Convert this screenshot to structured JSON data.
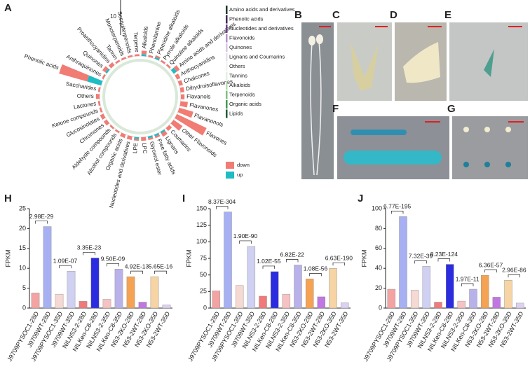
{
  "photo_panels": [
    "B",
    "C",
    "D",
    "E",
    "F",
    "G"
  ],
  "chart_data": [
    {
      "type": "radial_bar",
      "panel_label": "A",
      "scale_bar": 10,
      "categories": [
        "Alkaloids",
        "Phenolamine",
        "Piperidine alkaloids",
        "Pyrrole alkaloids",
        "Quinoline alkaloids",
        "Amino acids and derivatives",
        "Anthocyanidins",
        "Chalcones",
        "Dihydroisoflavones",
        "Flavanols",
        "Flavanones",
        "Flavanonols",
        "Flavones",
        "Other Flavonoids",
        "Coumarins",
        "Lignans",
        "Free fatty acids",
        "Glycerol ester",
        "LPC",
        "LPE",
        "Nucleotides and derivatives",
        "Organic acids",
        "Alcohol compounds",
        "Aldehyde compounds",
        "Chromones",
        "Glucosinolates",
        "Ketone compounds",
        "Lactones",
        "Others",
        "Saccharides",
        "Phenolic acids",
        "Anthraquinones",
        "Quinones",
        "Proanthocyanidins",
        "Tannin",
        "Monoterpenoids",
        "Sesquiterpenoids",
        "Terpene"
      ],
      "series": [
        {
          "name": "up",
          "color": "#1fbcc4",
          "values": [
            0.5,
            0,
            0.5,
            0,
            0,
            1,
            0,
            0,
            0,
            0,
            0,
            0,
            0,
            0,
            0,
            0.5,
            0.5,
            0.5,
            0,
            0.5,
            0,
            0,
            0,
            0,
            0,
            0,
            0,
            0,
            0,
            0,
            4,
            0,
            0.5,
            0,
            0,
            0,
            0,
            0
          ]
        },
        {
          "name": "down",
          "color": "#f07c74",
          "values": [
            1,
            0.5,
            0.5,
            0.5,
            0.5,
            1,
            1,
            1,
            1,
            1,
            2,
            4,
            9,
            3,
            1,
            1,
            0.5,
            0.5,
            1,
            0.5,
            1,
            1,
            0.5,
            0.5,
            1,
            1,
            0.5,
            0.5,
            1,
            0.5,
            8,
            0.5,
            1,
            1,
            0.5,
            0.5,
            0.5,
            0.5
          ]
        }
      ],
      "class_legend": [
        {
          "name": "Amino acids and derivatives",
          "color": "#1b3b2a"
        },
        {
          "name": "Phenolic acids",
          "color": "#3d2a4f"
        },
        {
          "name": "Nucleotides and derivatives",
          "color": "#6b3f8c"
        },
        {
          "name": "Flavonoids",
          "color": "#b48fd0"
        },
        {
          "name": "Quinones",
          "color": "#d7c6e8"
        },
        {
          "name": "Lignans and Coumarins",
          "color": "#e6e0ef"
        },
        {
          "name": "Others",
          "color": "#f2f2f2"
        },
        {
          "name": "Tannins",
          "color": "#e3efe3"
        },
        {
          "name": "Alkaloids",
          "color": "#b9dcb9"
        },
        {
          "name": "Terpenoids",
          "color": "#7fc07f"
        },
        {
          "name": "Organic acids",
          "color": "#3f9a4f"
        },
        {
          "name": "Lipids",
          "color": "#1f5a30"
        }
      ]
    },
    {
      "type": "bar",
      "panel_label": "H",
      "ylabel": "FPKM",
      "categories": [
        "J9709PYSOC1-28D",
        "J9709WT-28D",
        "J9709PYSOC1-35D",
        "J9709WT-35D",
        "NILNS3-2-28D",
        "NILKen-C8-28D",
        "NILNS3-2-35D",
        "NILKen-C8-35D",
        "N53-2KO-28D",
        "N53-2WT-28D",
        "N53-2KO-35D",
        "N53-2WT-35D"
      ],
      "values": [
        3.8,
        20.5,
        3.5,
        9.3,
        1.7,
        12.6,
        2.2,
        9.8,
        7.9,
        1.5,
        7.9,
        0.8
      ],
      "colors": [
        "#f4a3a3",
        "#a6b0f2",
        "#f6d9d2",
        "#cfd0f2",
        "#f07a7a",
        "#2b2be0",
        "#f6c2c2",
        "#b9b2ea",
        "#f5a352",
        "#c276e2",
        "#f6d4a4",
        "#ddd0f2"
      ],
      "ylim": [
        0,
        25
      ],
      "yticks": [
        0,
        5,
        10,
        15,
        20,
        25
      ],
      "annotations": [
        "2.98E-29",
        "1.09E-07",
        "3.35E-23",
        "9.50E-09",
        "4.92E-13",
        "5.65E-16"
      ]
    },
    {
      "type": "bar",
      "panel_label": "I",
      "ylabel": "FPKM",
      "categories": [
        "J9709PYSOC1-28D",
        "J9709WT-28D",
        "J9709PYSOC1-35D",
        "J9709WT-35D",
        "NILNS3-2-28D",
        "NILKen-C8-28D",
        "NILNS3-2-35D",
        "NILKen-C8-35D",
        "N53-2KO-28D",
        "N53-2WT-28D",
        "N53-2KO-35D",
        "N53-2WT-35D"
      ],
      "values": [
        26,
        145,
        34,
        93,
        18,
        55,
        21,
        65,
        44,
        17,
        60,
        8
      ],
      "colors": [
        "#f4a3a3",
        "#a6b0f2",
        "#f6d9d2",
        "#cfd0f2",
        "#f07a7a",
        "#2b2be0",
        "#f6c2c2",
        "#b9b2ea",
        "#f5a352",
        "#c276e2",
        "#f6d4a4",
        "#ddd0f2"
      ],
      "ylim": [
        0,
        150
      ],
      "yticks": [
        0,
        25,
        50,
        75,
        100,
        125,
        150
      ],
      "annotations": [
        "8.37E-304",
        "1.90E-90",
        "1.02E-55",
        "6.82E-22",
        "1.08E-56",
        "6.63E-190"
      ]
    },
    {
      "type": "bar",
      "panel_label": "J",
      "ylabel": "FPKM",
      "categories": [
        "J9709PYSOC1-28D",
        "J9709WT-28D",
        "J9709PYSOC1-35D",
        "J9709WT-35D",
        "NILNS3-2-28D",
        "NILKen-C8-28D",
        "NILNS3-2-35D",
        "NILKen-C8-35D",
        "N53-2KO-28D",
        "N53-2WT-28D",
        "N53-2KO-35D",
        "N53-2WT-35D"
      ],
      "values": [
        19,
        92,
        18,
        42,
        6,
        44,
        7,
        19,
        33,
        11,
        28,
        5
      ],
      "colors": [
        "#f4a3a3",
        "#a6b0f2",
        "#f6d9d2",
        "#cfd0f2",
        "#f07a7a",
        "#2b2be0",
        "#f6c2c2",
        "#b9b2ea",
        "#f5a352",
        "#c276e2",
        "#f6d4a4",
        "#ddd0f2"
      ],
      "ylim": [
        0,
        100
      ],
      "yticks": [
        0,
        20,
        40,
        60,
        80,
        100
      ],
      "annotations": [
        "6.77E-195",
        "7.32E-39",
        "8.23E-124",
        "1.97E-11",
        "6.36E-57",
        "2.96E-86"
      ]
    }
  ]
}
